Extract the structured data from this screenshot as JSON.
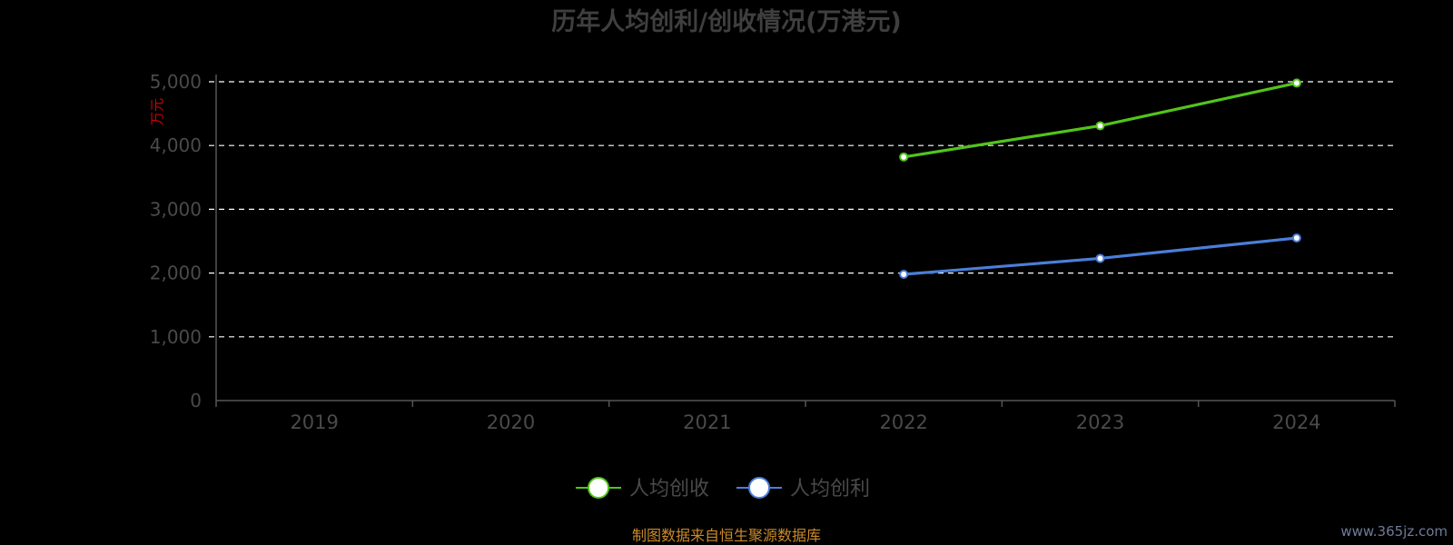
{
  "chart_data": {
    "type": "line",
    "title": "历年人均创利/创收情况(万港元)",
    "ylabel": "万元",
    "xlabel": "",
    "categories": [
      "2019",
      "2020",
      "2021",
      "2022",
      "2023",
      "2024"
    ],
    "ylim": [
      0,
      5000
    ],
    "yticks": [
      0,
      1000,
      2000,
      3000,
      4000,
      5000
    ],
    "ytick_labels": [
      "0",
      "1,000",
      "2,000",
      "3,000",
      "4,000",
      "5,000"
    ],
    "grid": true,
    "legend_position": "bottom-center",
    "series": [
      {
        "name": "人均创收",
        "color": "#52c41a",
        "values": [
          null,
          null,
          null,
          3820,
          4310,
          4980
        ]
      },
      {
        "name": "人均创利",
        "color": "#4a7fd8",
        "values": [
          null,
          null,
          null,
          1980,
          2230,
          2550
        ]
      }
    ]
  },
  "source_note": "制图数据来自恒生聚源数据库",
  "watermark": "www.365jz.com"
}
